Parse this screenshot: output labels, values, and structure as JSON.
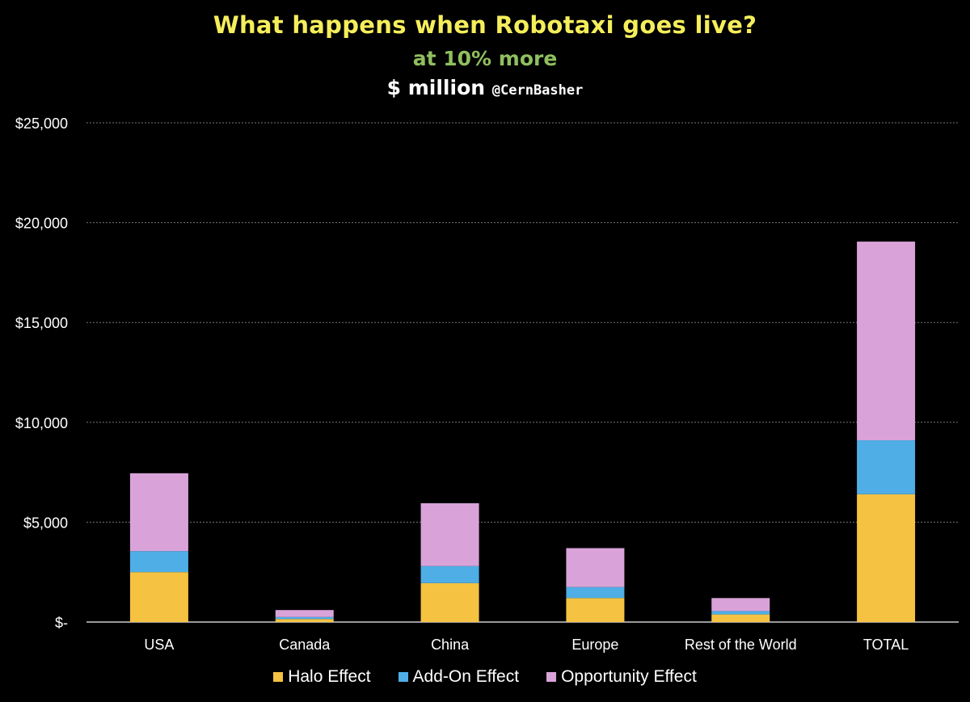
{
  "colors": {
    "background": "#000000",
    "title": "#F5EE5B",
    "subtitle": "#8FBF5E",
    "halo": "#F5C242",
    "addon": "#4FAEE6",
    "opportunity": "#D9A3D9",
    "grid": "#777777",
    "text": "#FFFFFF"
  },
  "chart_data": {
    "type": "bar",
    "stacked": true,
    "title": "What happens when Robotaxi goes live?",
    "subtitle": "at 10% more",
    "unit_line": "$ million",
    "handle": "@CernBasher",
    "categories": [
      "USA",
      "Canada",
      "China",
      "Europe",
      "Rest of the World",
      "TOTAL"
    ],
    "series": [
      {
        "name": "Halo Effect",
        "color": "#F5C242",
        "values": [
          2500,
          150,
          1950,
          1200,
          380,
          6400
        ]
      },
      {
        "name": "Add-On Effect",
        "color": "#4FAEE6",
        "values": [
          1050,
          100,
          850,
          550,
          170,
          2700
        ]
      },
      {
        "name": "Opportunity Effect",
        "color": "#D9A3D9",
        "values": [
          3900,
          350,
          3150,
          1950,
          650,
          9950
        ]
      }
    ],
    "y_ticks": [
      0,
      5000,
      10000,
      15000,
      20000,
      25000
    ],
    "y_tick_labels": [
      "$-",
      "$5,000",
      "$10,000",
      "$15,000",
      "$20,000",
      "$25,000"
    ],
    "ylim": [
      0,
      25000
    ],
    "grid": true,
    "legend": "bottom"
  }
}
